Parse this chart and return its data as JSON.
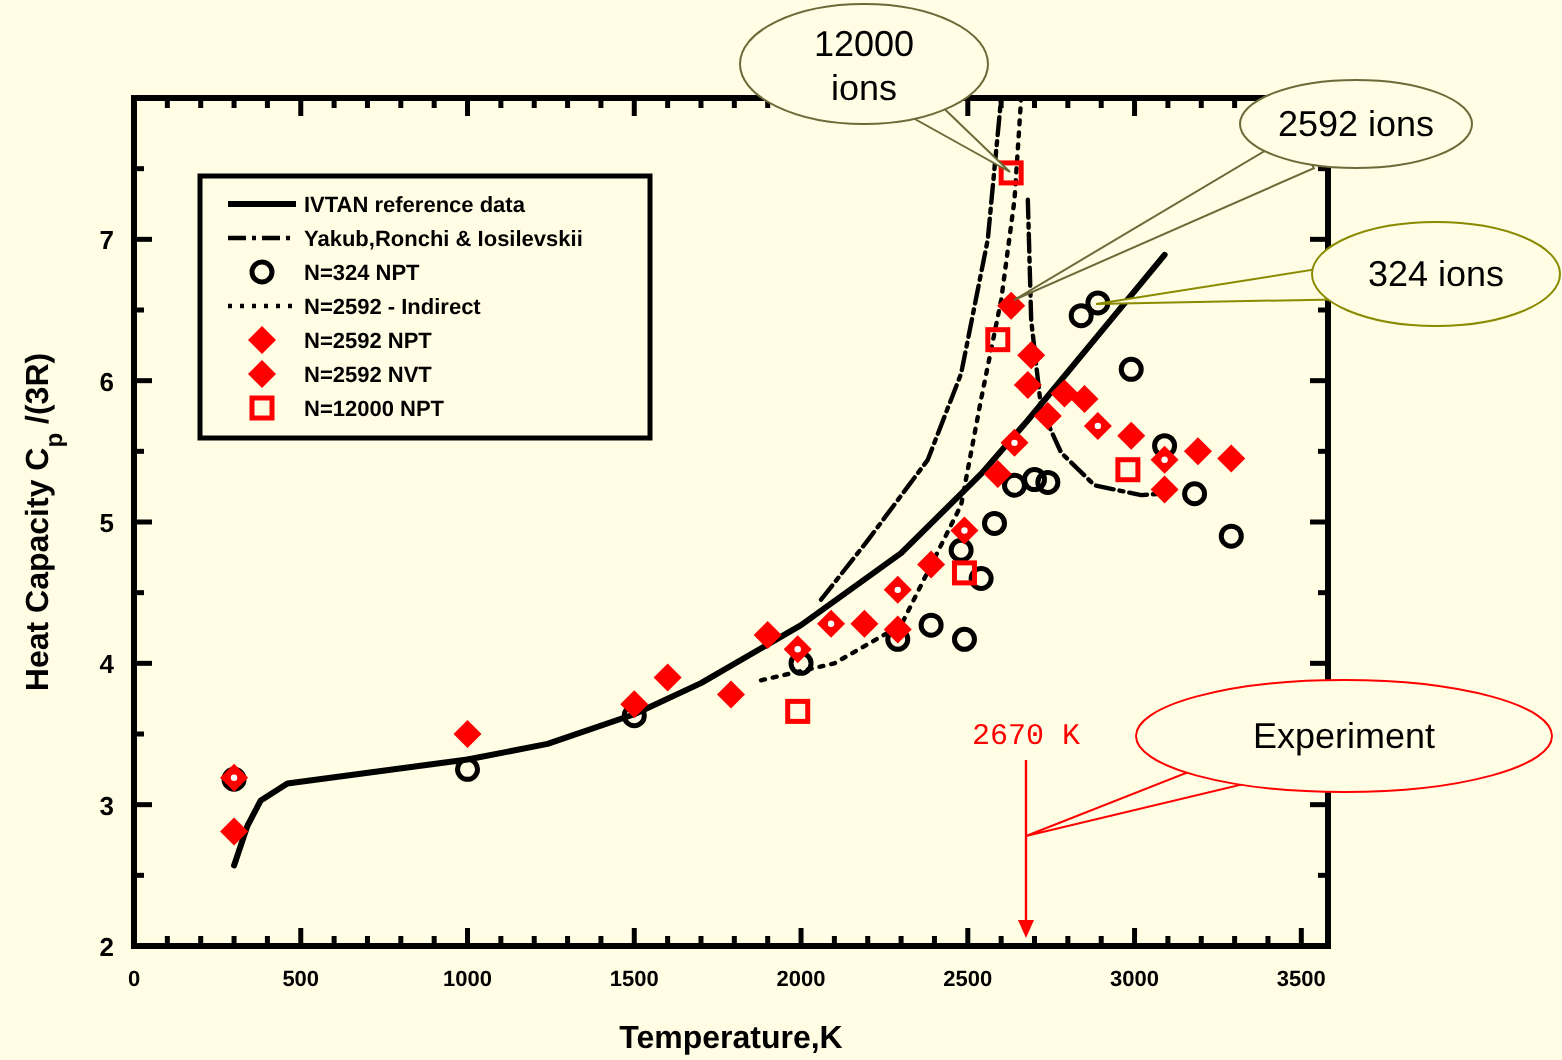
{
  "chart_data": {
    "type": "scatter",
    "xlabel": "Temperature,K",
    "ylabel": "Heat Capacity C$_{p}$ /(3R)",
    "xlim": [
      0,
      3580
    ],
    "ylim": [
      2,
      8
    ],
    "xticks": [
      0,
      {
        "value": 100,
        "label": null
      },
      {
        "value": 200,
        "label": null
      },
      {
        "value": 300,
        "label": null
      },
      {
        "value": 400,
        "label": null
      },
      500,
      {
        "value": 600,
        "label": null
      },
      {
        "value": 700,
        "label": null
      },
      {
        "value": 800,
        "label": null
      },
      {
        "value": 900,
        "label": null
      },
      1000,
      {
        "value": 1100,
        "label": null
      },
      {
        "value": 1200,
        "label": null
      },
      {
        "value": 1300,
        "label": null
      },
      {
        "value": 1400,
        "label": null
      },
      1500,
      {
        "value": 1600,
        "label": null
      },
      {
        "value": 1700,
        "label": null
      },
      {
        "value": 1800,
        "label": null
      },
      {
        "value": 1900,
        "label": null
      },
      2000,
      {
        "value": 2100,
        "label": null
      },
      {
        "value": 2200,
        "label": null
      },
      {
        "value": 2300,
        "label": null
      },
      {
        "value": 2400,
        "label": null
      },
      2500,
      {
        "value": 2600,
        "label": null
      },
      {
        "value": 2700,
        "label": null
      },
      {
        "value": 2800,
        "label": null
      },
      {
        "value": 2900,
        "label": null
      },
      3000,
      {
        "value": 3100,
        "label": null
      },
      {
        "value": 3200,
        "label": null
      },
      {
        "value": 3300,
        "label": null
      },
      {
        "value": 3400,
        "label": null
      },
      3500
    ],
    "yticks": [
      2,
      {
        "value": 2.5,
        "label": null
      },
      3,
      {
        "value": 3.5,
        "label": null
      },
      4,
      {
        "value": 4.5,
        "label": null
      },
      5,
      {
        "value": 5.5,
        "label": null
      },
      6,
      {
        "value": 6.5,
        "label": null
      },
      7,
      {
        "value": 7.5,
        "label": null
      }
    ],
    "legend": "top left",
    "grid": false,
    "series": [
      {
        "name": "IVTAN reference data",
        "type": "line",
        "line_style": "solid",
        "marker": "none",
        "color": "#000000",
        "x": [
          300,
          340,
          380,
          460,
          1000,
          1240,
          1500,
          1700,
          2000,
          2300,
          2540,
          2680,
          2880,
          3090
        ],
        "values": [
          2.57,
          2.85,
          3.03,
          3.15,
          3.32,
          3.43,
          3.64,
          3.86,
          4.27,
          4.78,
          5.34,
          5.72,
          6.29,
          6.89
        ]
      },
      {
        "name": "Yakub,Ronchi & Iosilevskii",
        "type": "line",
        "line_style": "dashed",
        "marker": "none",
        "color": "#000000",
        "x": [
          2060,
          2200,
          2380,
          2480,
          2560,
          2600,
          2640,
          2680,
          2690,
          2720,
          2780,
          2880,
          3020,
          3080
        ],
        "values": [
          4.45,
          4.87,
          5.44,
          6.05,
          7.0,
          8.0,
          null,
          7.28,
          6.43,
          5.8,
          5.49,
          5.26,
          5.19,
          5.2
        ]
      },
      {
        "name": "N=324  NPT",
        "marker": "circle",
        "color": "#000000",
        "x": [
          300,
          1000,
          1500,
          2000,
          2290,
          2390,
          2480,
          2490,
          2540,
          2580,
          2640,
          2700,
          2740,
          2840,
          2890,
          2990,
          3090,
          3180,
          3290
        ],
        "values": [
          3.18,
          3.25,
          3.63,
          4.0,
          4.17,
          4.27,
          4.8,
          4.17,
          4.6,
          4.99,
          5.26,
          5.3,
          5.28,
          6.46,
          6.55,
          6.08,
          5.54,
          5.2,
          4.9
        ]
      },
      {
        "name": "N=2592 - Indirect",
        "type": "line",
        "line_style": "dotted",
        "marker": "none",
        "color": "#000000",
        "x": [
          1880,
          2100,
          2300,
          2480,
          2540,
          2600,
          2640,
          2660
        ],
        "values": [
          3.88,
          4.0,
          4.27,
          5.12,
          5.87,
          6.57,
          7.28,
          8.0
        ]
      },
      {
        "name": "N=2592 NPT",
        "marker": "diamond",
        "color": "#ff0000",
        "x": [
          300,
          1000,
          1500,
          1600,
          1790,
          1900,
          2190,
          2290,
          2390,
          2590,
          2630,
          2680,
          2690,
          2740,
          2790,
          2850,
          2990,
          3090,
          3190,
          3290
        ],
        "values": [
          2.81,
          3.5,
          3.71,
          3.9,
          3.78,
          4.2,
          4.28,
          4.24,
          4.7,
          5.34,
          6.53,
          5.97,
          6.18,
          5.75,
          5.91,
          5.87,
          5.61,
          5.23,
          5.5,
          5.45
        ]
      },
      {
        "name": "N=2592 NVT",
        "marker": "diamond",
        "color": "#ff0000",
        "x": [
          300,
          1990,
          2090,
          2290,
          2490,
          2640,
          2890,
          3090
        ],
        "values": [
          3.19,
          4.1,
          4.28,
          4.52,
          4.94,
          5.56,
          5.68,
          5.44
        ]
      },
      {
        "name": "N=12000 NPT",
        "marker": "square",
        "color": "#ff0000",
        "x": [
          1990,
          2490,
          2590,
          2630,
          2980
        ],
        "values": [
          3.66,
          4.64,
          6.29,
          7.47,
          5.37
        ]
      }
    ],
    "annotations": [
      "12000 ions",
      "2592 ions",
      "324 ions",
      "2670 K",
      "Experiment"
    ]
  }
}
